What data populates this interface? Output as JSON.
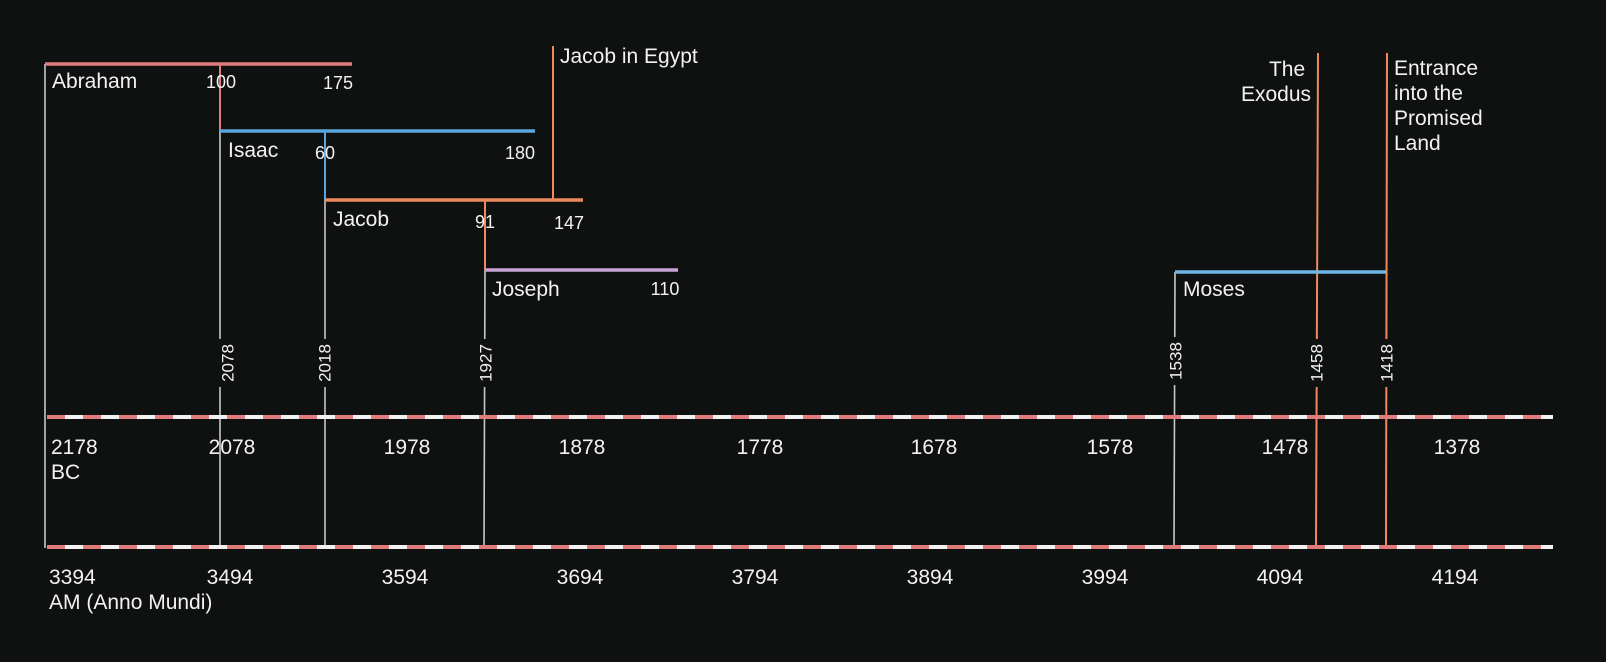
{
  "people": [
    {
      "name": "Abraham",
      "color": "#e07b7b",
      "ages": [
        "100",
        "175"
      ]
    },
    {
      "name": "Isaac",
      "color": "#5ba6dc",
      "ages": [
        "60",
        "180"
      ]
    },
    {
      "name": "Jacob",
      "color": "#f08a5d",
      "ages": [
        "91",
        "147"
      ]
    },
    {
      "name": "Joseph",
      "color": "#c9a3d6",
      "ages": [
        "110"
      ]
    },
    {
      "name": "Moses",
      "color": "#6fb6e6",
      "ages": []
    }
  ],
  "events": [
    {
      "label": "Jacob in Egypt",
      "lines": [
        "Jacob in Egypt"
      ],
      "color": "#f08a5d"
    },
    {
      "label": "The Exodus",
      "lines": [
        "The",
        "Exodus"
      ],
      "color": "#f08a5d"
    },
    {
      "label": "Entrance into the Promised Land",
      "lines": [
        "Entrance",
        "into the",
        "Promised",
        "Land"
      ],
      "color": "#f08a5d"
    }
  ],
  "markers": [
    "2078",
    "2018",
    "1927",
    "1538",
    "1458",
    "1418"
  ],
  "bc_axis": {
    "ticks": [
      "2178",
      "2078",
      "1978",
      "1878",
      "1778",
      "1678",
      "1578",
      "1478",
      "1378"
    ],
    "unit": "BC"
  },
  "am_axis": {
    "ticks": [
      "3394",
      "3494",
      "3594",
      "3694",
      "3794",
      "3894",
      "3994",
      "4094",
      "4194"
    ],
    "unit": "AM (Anno Mundi)"
  },
  "colors": {
    "background": "#0f1010",
    "text": "#f2f2f2",
    "axis_dash_a": "#e07b7b",
    "axis_dash_b": "#f2f2f2",
    "connector": "#c8c8c8"
  }
}
